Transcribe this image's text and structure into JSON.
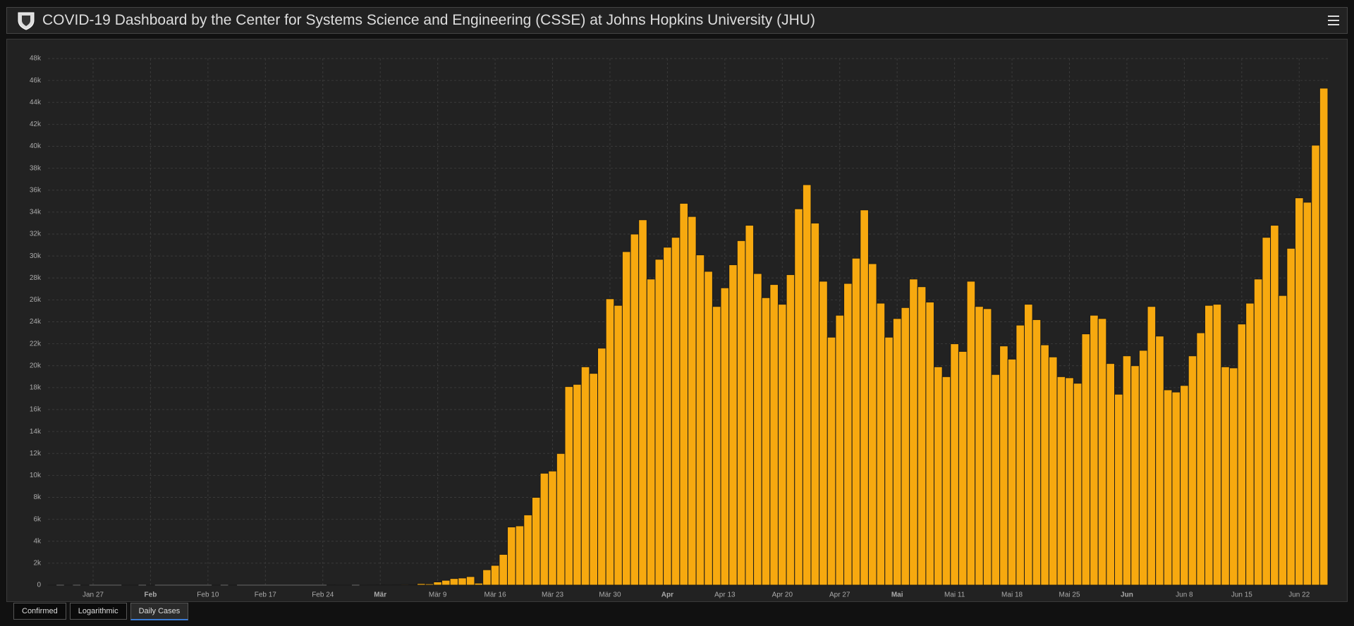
{
  "header": {
    "title": "COVID-19 Dashboard by the Center for Systems Science and Engineering (CSSE) at Johns Hopkins University (JHU)"
  },
  "chart_data": {
    "type": "bar",
    "categories": [
      null,
      null,
      null,
      null,
      null,
      "Jan 27",
      null,
      null,
      null,
      null,
      null,
      null,
      "Feb",
      null,
      null,
      null,
      null,
      null,
      null,
      "Feb 10",
      null,
      null,
      null,
      null,
      null,
      null,
      "Feb 17",
      null,
      null,
      null,
      null,
      null,
      null,
      "Feb 24",
      null,
      null,
      null,
      null,
      null,
      null,
      "Mär",
      null,
      null,
      null,
      null,
      null,
      null,
      "Mär 9",
      null,
      null,
      null,
      null,
      null,
      null,
      "Mär 16",
      null,
      null,
      null,
      null,
      null,
      null,
      "Mär 23",
      null,
      null,
      null,
      null,
      null,
      null,
      "Mär 30",
      null,
      null,
      null,
      null,
      null,
      null,
      "Apr",
      null,
      null,
      null,
      null,
      null,
      null,
      "Apr 13",
      null,
      null,
      null,
      null,
      null,
      null,
      "Apr 20",
      null,
      null,
      null,
      null,
      null,
      null,
      "Apr 27",
      null,
      null,
      null,
      null,
      null,
      null,
      "Mai",
      null,
      null,
      null,
      null,
      null,
      null,
      "Mai 11",
      null,
      null,
      null,
      null,
      null,
      null,
      "Mai 18",
      null,
      null,
      null,
      null,
      null,
      null,
      "Mai 25",
      null,
      null,
      null,
      null,
      null,
      null,
      "Jun",
      null,
      null,
      null,
      null,
      null,
      null,
      "Jun 8",
      null,
      null,
      null,
      null,
      null,
      null,
      "Jun 15",
      null,
      null,
      null,
      null,
      null,
      null,
      "Jun 22",
      null,
      null,
      null
    ],
    "values": [
      1,
      0,
      1,
      0,
      3,
      0,
      0,
      0,
      0,
      2,
      1,
      0,
      3,
      0,
      0,
      0,
      0,
      0,
      0,
      0,
      1,
      0,
      1,
      0,
      0,
      0,
      0,
      0,
      0,
      0,
      0,
      0,
      0,
      0,
      18,
      4,
      3,
      0,
      3,
      8,
      23,
      20,
      31,
      68,
      45,
      140,
      116,
      290,
      440,
      600,
      650,
      780,
      180,
      1400,
      1800,
      2800,
      5300,
      5400,
      6400,
      8000,
      10200,
      10400,
      12000,
      18100,
      18300,
      19900,
      19300,
      21600,
      26100,
      25500,
      30400,
      32000,
      33300,
      27900,
      29700,
      30800,
      31700,
      34800,
      33600,
      30100,
      28600,
      25400,
      27100,
      29200,
      31400,
      32800,
      28400,
      26200,
      27400,
      25600,
      28300,
      34300,
      36500,
      33000,
      27700,
      22600,
      24600,
      27500,
      29800,
      34200,
      29300,
      25700,
      22600,
      24300,
      25300,
      27900,
      27200,
      25800,
      19900,
      19000,
      22000,
      21300,
      27700,
      25400,
      25200,
      19200,
      21800,
      20600,
      23700,
      25600,
      24200,
      21900,
      20800,
      19000,
      18900,
      18400,
      22900,
      24600,
      24300,
      20200,
      17400,
      20900,
      20000,
      21400,
      25400,
      22700,
      17800,
      17600,
      18200,
      20900,
      23000,
      25500,
      25600,
      19900,
      19800,
      23800,
      25700,
      27900,
      31700,
      32800,
      26400,
      30700,
      35300,
      34900,
      40100,
      45300
    ],
    "color": "#f7a90f",
    "ylim": [
      0,
      48000
    ],
    "yticks": [
      0,
      {
        "value": 2000,
        "label": "2k"
      },
      {
        "value": 4000,
        "label": "4k"
      },
      {
        "value": 6000,
        "label": "6k"
      },
      {
        "value": 8000,
        "label": "8k"
      },
      {
        "value": 10000,
        "label": "10k"
      },
      {
        "value": 12000,
        "label": "12k"
      },
      {
        "value": 14000,
        "label": "14k"
      },
      {
        "value": 16000,
        "label": "16k"
      },
      {
        "value": 18000,
        "label": "18k"
      },
      {
        "value": 20000,
        "label": "20k"
      },
      {
        "value": 22000,
        "label": "22k"
      },
      {
        "value": 24000,
        "label": "24k"
      },
      {
        "value": 26000,
        "label": "26k"
      },
      {
        "value": 28000,
        "label": "28k"
      },
      {
        "value": 30000,
        "label": "30k"
      },
      {
        "value": 32000,
        "label": "32k"
      },
      {
        "value": 34000,
        "label": "34k"
      },
      {
        "value": 36000,
        "label": "36k"
      },
      {
        "value": 38000,
        "label": "38k"
      },
      {
        "value": 40000,
        "label": "40k"
      },
      {
        "value": 42000,
        "label": "42k"
      },
      {
        "value": 44000,
        "label": "44k"
      },
      {
        "value": 46000,
        "label": "46k"
      },
      {
        "value": 48000,
        "label": "48k"
      }
    ],
    "grid": true
  },
  "buttons": [
    "Confirmed",
    "Logarithmic",
    "Daily Cases"
  ]
}
